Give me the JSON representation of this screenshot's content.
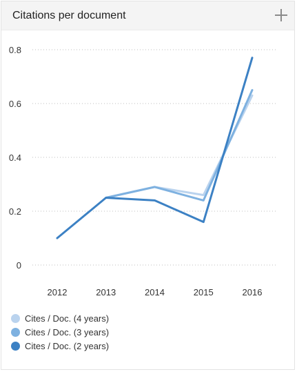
{
  "card": {
    "title": "Citations per document"
  },
  "colors": {
    "four_years": "#bad3ee",
    "three_years": "#7eb1e0",
    "two_years": "#3c81c4",
    "grid": "#bdbdbd"
  },
  "chart_data": {
    "type": "line",
    "categories": [
      "2012",
      "2013",
      "2014",
      "2015",
      "2016"
    ],
    "ylim": [
      0,
      0.8
    ],
    "yticks": [
      "0",
      "0.2",
      "0.4",
      "0.6",
      "0.8"
    ],
    "grid": true,
    "legend_position": "bottom",
    "series": [
      {
        "name": "Cites / Doc. (4 years)",
        "color": "#bad3ee",
        "values": [
          null,
          0.25,
          0.29,
          0.26,
          0.63
        ]
      },
      {
        "name": "Cites / Doc. (3 years)",
        "color": "#7eb1e0",
        "values": [
          null,
          0.25,
          0.29,
          0.24,
          0.65
        ]
      },
      {
        "name": "Cites / Doc. (2 years)",
        "color": "#3c81c4",
        "values": [
          0.1,
          0.25,
          0.24,
          0.16,
          0.77
        ]
      }
    ]
  }
}
